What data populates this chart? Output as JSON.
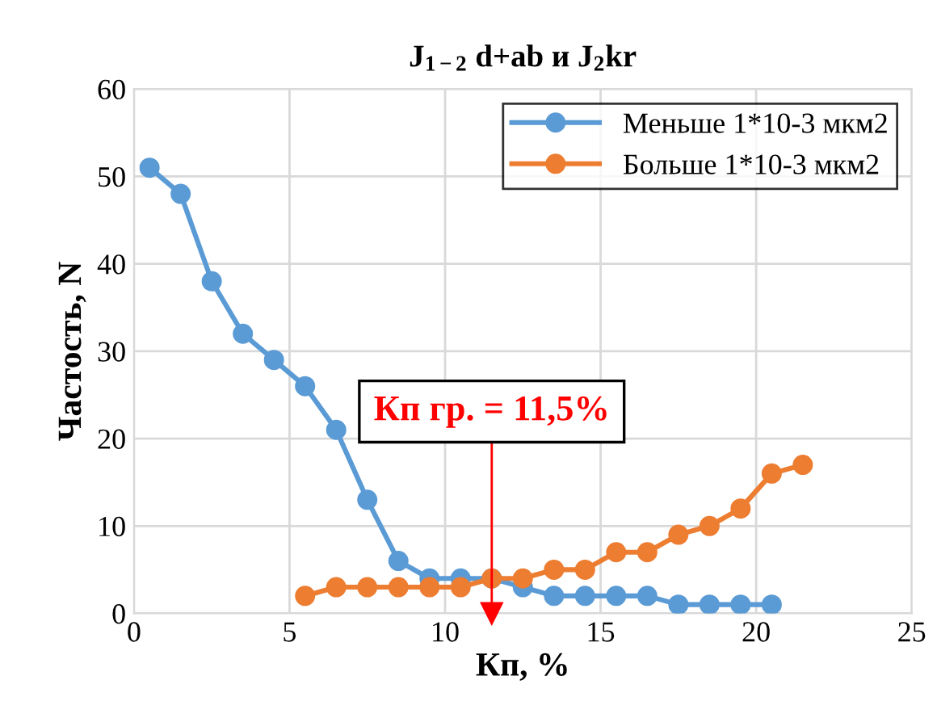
{
  "chart_data": {
    "type": "line",
    "title": "J$_{1−2}$ d+ab и J$_{2}$kr",
    "xlabel": "Кп, %",
    "ylabel": "Частость, N",
    "xlim": [
      0,
      25
    ],
    "xticks": [
      0,
      5,
      10,
      15,
      20,
      25
    ],
    "ylim": [
      0,
      60
    ],
    "yticks": [
      0,
      10,
      20,
      30,
      40,
      50,
      60
    ],
    "grid": true,
    "legend": "top right",
    "marker": "circle",
    "line_style": "solid",
    "ref_lines": [
      {
        "axis": "x",
        "value": 11.5,
        "label": "Кп гр. = 11,5%",
        "color": "#ff0000"
      }
    ],
    "series": [
      {
        "name": "Меньше 1*10-3 мкм2",
        "color": "#5b9bd5",
        "x": [
          0.5,
          1.5,
          2.5,
          3.5,
          4.5,
          5.5,
          6.5,
          7.5,
          8.5,
          9.5,
          10.5,
          11.5,
          12.5,
          13.5,
          14.5,
          15.5,
          16.5,
          17.5,
          18.5,
          19.5,
          20.5
        ],
        "values": [
          51,
          48,
          38,
          32,
          29,
          26,
          21,
          13,
          6,
          4,
          4,
          4,
          3,
          2,
          2,
          2,
          2,
          1,
          1,
          1,
          1
        ]
      },
      {
        "name": "Больше 1*10-3 мкм2",
        "color": "#ed7d31",
        "x": [
          5.5,
          6.5,
          7.5,
          8.5,
          9.5,
          10.5,
          11.5,
          12.5,
          13.5,
          14.5,
          15.5,
          16.5,
          17.5,
          18.5,
          19.5,
          20.5,
          21.5
        ],
        "values": [
          2,
          3,
          3,
          3,
          3,
          3,
          4,
          4,
          5,
          5,
          7,
          7,
          9,
          10,
          12,
          16,
          17
        ]
      }
    ]
  }
}
